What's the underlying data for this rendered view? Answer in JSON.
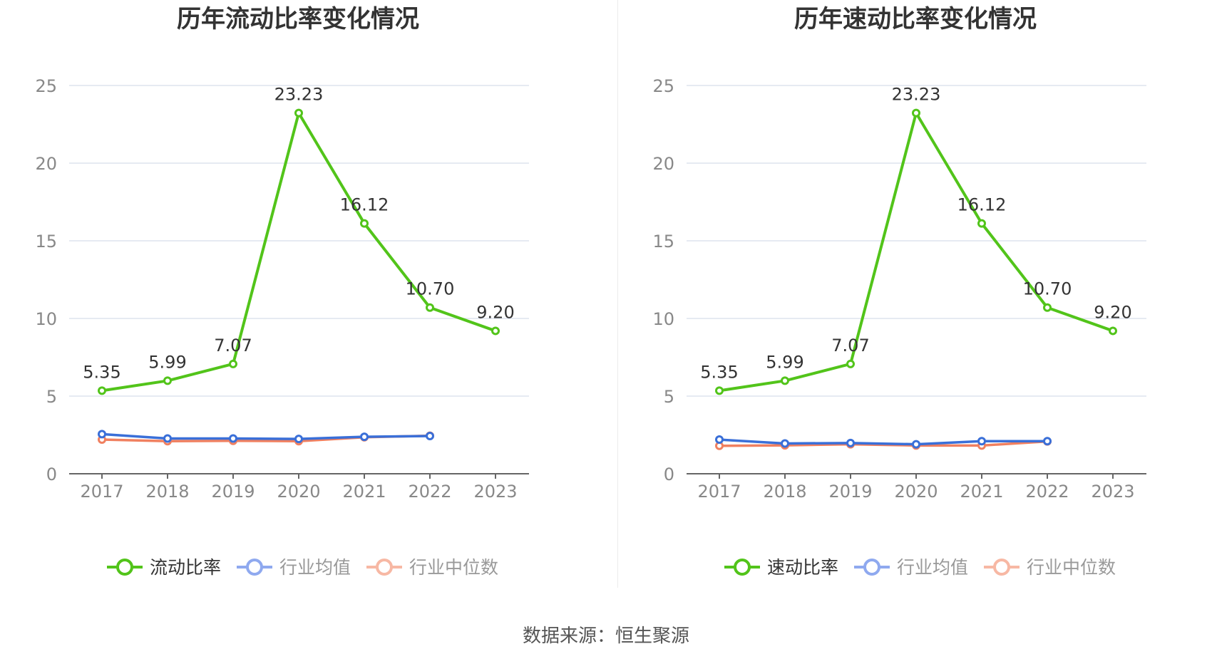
{
  "source_label": "数据来源：恒生聚源",
  "colors": {
    "company": "#52c41a",
    "avg": "#3a6fd8",
    "median": "#f08060",
    "avg_legend": "#8fa9ef",
    "median_legend": "#f7b8a4",
    "grid": "#dde4ee",
    "axis": "#666666",
    "tick": "#888888"
  },
  "chart_data": [
    {
      "type": "line",
      "title": "历年流动比率变化情况",
      "categories": [
        "2017",
        "2018",
        "2019",
        "2020",
        "2021",
        "2022",
        "2023"
      ],
      "ylim": [
        0,
        25
      ],
      "yticks": [
        0,
        5,
        10,
        15,
        20,
        25
      ],
      "grid": true,
      "legend_position": "bottom",
      "series": [
        {
          "name": "流动比率",
          "values": [
            5.35,
            5.99,
            7.07,
            23.23,
            16.12,
            10.7,
            9.2
          ],
          "labels": [
            "5.35",
            "5.99",
            "7.07",
            "23.23",
            "16.12",
            "10.70",
            "9.20"
          ]
        },
        {
          "name": "行业均值",
          "values": [
            2.55,
            2.27,
            2.27,
            2.24,
            2.38,
            2.43,
            null
          ]
        },
        {
          "name": "行业中位数",
          "values": [
            2.2,
            2.1,
            2.12,
            2.1,
            2.35,
            2.45,
            null
          ]
        }
      ]
    },
    {
      "type": "line",
      "title": "历年速动比率变化情况",
      "categories": [
        "2017",
        "2018",
        "2019",
        "2020",
        "2021",
        "2022",
        "2023"
      ],
      "ylim": [
        0,
        25
      ],
      "yticks": [
        0,
        5,
        10,
        15,
        20,
        25
      ],
      "grid": true,
      "legend_position": "bottom",
      "series": [
        {
          "name": "速动比率",
          "values": [
            5.35,
            5.99,
            7.07,
            23.23,
            16.12,
            10.7,
            9.2
          ],
          "labels": [
            "5.35",
            "5.99",
            "7.07",
            "23.23",
            "16.12",
            "10.70",
            "9.20"
          ]
        },
        {
          "name": "行业均值",
          "values": [
            2.2,
            1.95,
            1.98,
            1.9,
            2.1,
            2.1,
            null
          ]
        },
        {
          "name": "行业中位数",
          "values": [
            1.8,
            1.83,
            1.9,
            1.82,
            1.82,
            2.08,
            null
          ]
        }
      ]
    }
  ]
}
